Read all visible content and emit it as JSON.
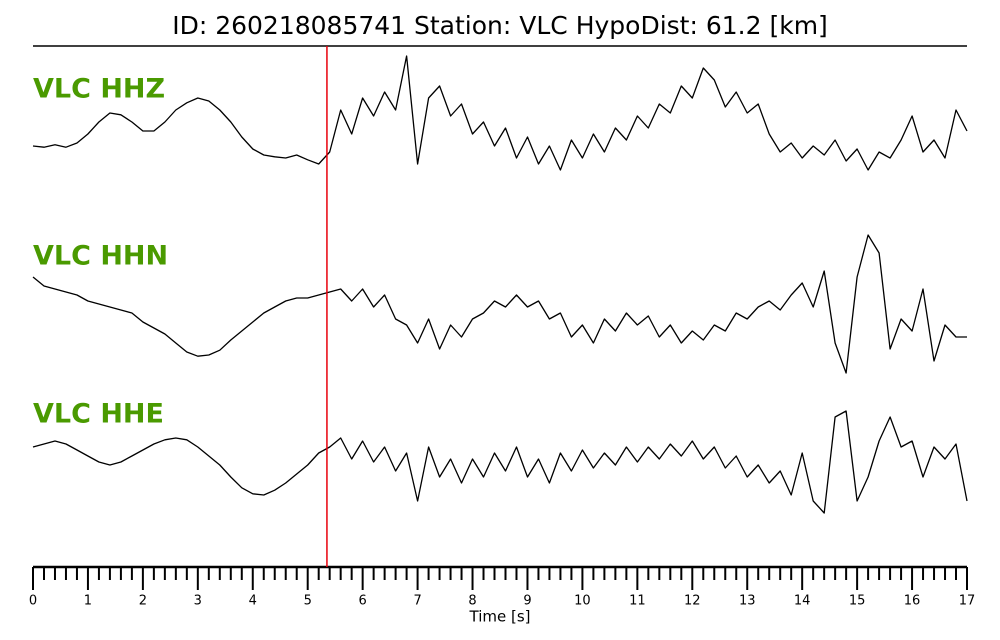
{
  "chart_data": {
    "type": "line",
    "title": "ID: 260218085741   Station: VLC   HypoDist:    61.2 [km]",
    "xlabel": "Time [s]",
    "xlim": [
      0,
      17
    ],
    "xticks": [
      0,
      1,
      2,
      3,
      4,
      5,
      6,
      7,
      8,
      9,
      10,
      11,
      12,
      13,
      14,
      15,
      16,
      17
    ],
    "minor_per_major": 5,
    "ylim": [
      -1.5,
      1.5
    ],
    "pick_time": 5.35,
    "pick_color": "#e8000b",
    "label_color": "#4a9a00",
    "x": [
      0,
      0.2,
      0.4,
      0.6,
      0.8,
      1,
      1.2,
      1.4,
      1.6,
      1.8,
      2,
      2.2,
      2.4,
      2.6,
      2.8,
      3,
      3.2,
      3.4,
      3.6,
      3.8,
      4,
      4.2,
      4.4,
      4.6,
      4.8,
      5,
      5.2,
      5.4,
      5.6,
      5.8,
      6,
      6.2,
      6.4,
      6.6,
      6.8,
      7,
      7.2,
      7.4,
      7.6,
      7.8,
      8,
      8.2,
      8.4,
      8.6,
      8.8,
      9,
      9.2,
      9.4,
      9.6,
      9.8,
      10,
      10.2,
      10.4,
      10.6,
      10.8,
      11,
      11.2,
      11.4,
      11.6,
      11.8,
      12,
      12.2,
      12.4,
      12.6,
      12.8,
      13,
      13.2,
      13.4,
      13.6,
      13.8,
      14,
      14.2,
      14.4,
      14.6,
      14.8,
      15,
      15.2,
      15.4,
      15.6,
      15.8,
      16,
      16.2,
      16.4,
      16.6,
      16.8,
      17
    ],
    "series": [
      {
        "name": "VLC HHZ",
        "color": "#000000",
        "values": [
          -0.1,
          -0.12,
          -0.08,
          -0.12,
          -0.05,
          0.1,
          0.3,
          0.45,
          0.42,
          0.3,
          0.15,
          0.15,
          0.3,
          0.5,
          0.62,
          0.7,
          0.65,
          0.5,
          0.3,
          0.05,
          -0.15,
          -0.25,
          -0.28,
          -0.3,
          -0.25,
          -0.33,
          -0.4,
          -0.2,
          0.5,
          0.1,
          0.7,
          0.4,
          0.8,
          0.5,
          1.4,
          -0.4,
          0.7,
          0.9,
          0.4,
          0.6,
          0.1,
          0.3,
          -0.1,
          0.2,
          -0.3,
          0.05,
          -0.4,
          -0.1,
          -0.5,
          0.0,
          -0.3,
          0.1,
          -0.2,
          0.2,
          0.0,
          0.4,
          0.2,
          0.6,
          0.45,
          0.9,
          0.7,
          1.2,
          1.0,
          0.55,
          0.8,
          0.45,
          0.6,
          0.1,
          -0.2,
          -0.05,
          -0.3,
          -0.1,
          -0.25,
          0.0,
          -0.35,
          -0.15,
          -0.5,
          -0.2,
          -0.3,
          0.0,
          0.4,
          -0.2,
          0.0,
          -0.3,
          0.5,
          0.15
        ]
      },
      {
        "name": "VLC HHN",
        "color": "#000000",
        "values": [
          0.5,
          0.35,
          0.3,
          0.25,
          0.2,
          0.1,
          0.05,
          0.0,
          -0.05,
          -0.1,
          -0.25,
          -0.35,
          -0.45,
          -0.6,
          -0.75,
          -0.82,
          -0.8,
          -0.72,
          -0.55,
          -0.4,
          -0.25,
          -0.1,
          0.0,
          0.1,
          0.15,
          0.15,
          0.2,
          0.25,
          0.3,
          0.1,
          0.3,
          0.0,
          0.2,
          -0.2,
          -0.3,
          -0.6,
          -0.2,
          -0.7,
          -0.3,
          -0.5,
          -0.2,
          -0.1,
          0.1,
          0.0,
          0.2,
          0.0,
          0.1,
          -0.2,
          -0.1,
          -0.5,
          -0.3,
          -0.6,
          -0.2,
          -0.4,
          -0.1,
          -0.3,
          -0.15,
          -0.5,
          -0.3,
          -0.6,
          -0.4,
          -0.55,
          -0.3,
          -0.4,
          -0.1,
          -0.2,
          0.0,
          0.1,
          -0.05,
          0.2,
          0.4,
          0.0,
          0.6,
          -0.6,
          -1.1,
          0.5,
          1.2,
          0.9,
          -0.7,
          -0.2,
          -0.4,
          0.3,
          -0.9,
          -0.3,
          -0.5,
          -0.5
        ]
      },
      {
        "name": "VLC HHE",
        "color": "#000000",
        "values": [
          0.3,
          0.35,
          0.4,
          0.35,
          0.25,
          0.15,
          0.05,
          0.0,
          0.05,
          0.15,
          0.25,
          0.35,
          0.42,
          0.45,
          0.42,
          0.3,
          0.15,
          0.0,
          -0.2,
          -0.38,
          -0.48,
          -0.5,
          -0.42,
          -0.3,
          -0.15,
          0.0,
          0.2,
          0.3,
          0.45,
          0.1,
          0.4,
          0.05,
          0.3,
          -0.1,
          0.2,
          -0.6,
          0.3,
          -0.2,
          0.1,
          -0.3,
          0.1,
          -0.2,
          0.2,
          -0.1,
          0.3,
          -0.2,
          0.1,
          -0.3,
          0.2,
          -0.1,
          0.25,
          -0.05,
          0.2,
          0.0,
          0.3,
          0.05,
          0.3,
          0.1,
          0.35,
          0.15,
          0.4,
          0.1,
          0.3,
          -0.05,
          0.15,
          -0.2,
          0.0,
          -0.3,
          -0.1,
          -0.5,
          0.2,
          -0.6,
          -0.8,
          0.8,
          0.9,
          -0.6,
          -0.2,
          0.4,
          0.8,
          0.3,
          0.4,
          -0.2,
          0.3,
          0.1,
          0.35,
          -0.6
        ]
      }
    ]
  }
}
